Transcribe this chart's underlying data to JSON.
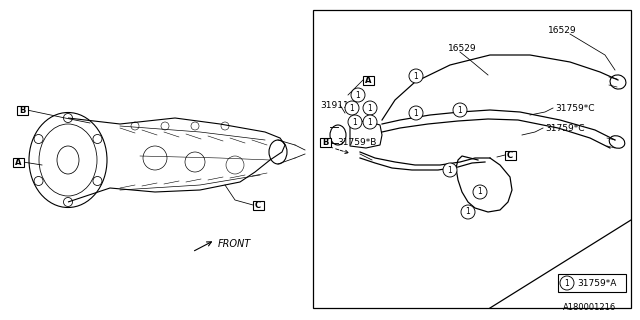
{
  "bg_color": "#ffffff",
  "line_color": "#000000",
  "fig_width": 6.4,
  "fig_height": 3.2,
  "dpi": 100,
  "labels": {
    "part_A_left": "A",
    "part_B_left": "B",
    "part_C_left": "C",
    "part_front": "FRONT",
    "part_31911": "31911",
    "part_A_right": "A",
    "part_16529_top": "16529",
    "part_16529_mid": "16529",
    "part_31759C_top": "31759*C",
    "part_31759C_mid": "31759*C",
    "part_B_right": "B",
    "part_31759B": "31759*B",
    "part_C_right": "C",
    "part_31759A": "31759*A",
    "legend_num": "1",
    "watermark": "A180001216"
  }
}
